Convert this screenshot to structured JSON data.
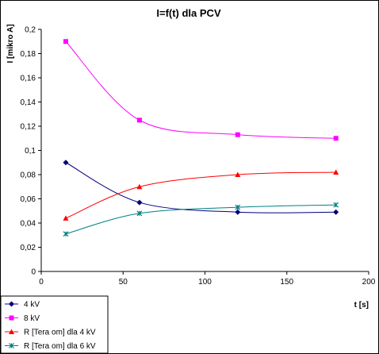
{
  "chart_data": {
    "type": "line",
    "title": "I=f(t) dla PCV",
    "xlabel": "t [s]",
    "ylabel": "I [mikro A]",
    "xlim": [
      0,
      200
    ],
    "ylim": [
      0,
      0.2
    ],
    "xticks": [
      "0",
      "50",
      "100",
      "150",
      "200"
    ],
    "yticks": [
      "0",
      "0,02",
      "0,04",
      "0,06",
      "0,08",
      "0,1",
      "0,12",
      "0,14",
      "0,16",
      "0,18",
      "0,2"
    ],
    "grid": false,
    "legend_position": "bottom-left",
    "series": [
      {
        "name": "4 kV",
        "color": "#000080",
        "marker": "diamond",
        "x": [
          15,
          60,
          120,
          180
        ],
        "y": [
          0.09,
          0.057,
          0.049,
          0.049
        ]
      },
      {
        "name": "8 kV",
        "color": "#FF00FF",
        "marker": "square",
        "x": [
          15,
          60,
          120,
          180
        ],
        "y": [
          0.19,
          0.125,
          0.113,
          0.11
        ]
      },
      {
        "name": "R [Tera om] dla 4 kV",
        "color": "#FF0000",
        "marker": "triangle",
        "x": [
          15,
          60,
          120,
          180
        ],
        "y": [
          0.044,
          0.07,
          0.08,
          0.082
        ]
      },
      {
        "name": "R [Tera om] dla 6 kV",
        "color": "#008080",
        "marker": "x",
        "x": [
          15,
          60,
          120,
          180
        ],
        "y": [
          0.031,
          0.048,
          0.053,
          0.055
        ]
      }
    ]
  }
}
